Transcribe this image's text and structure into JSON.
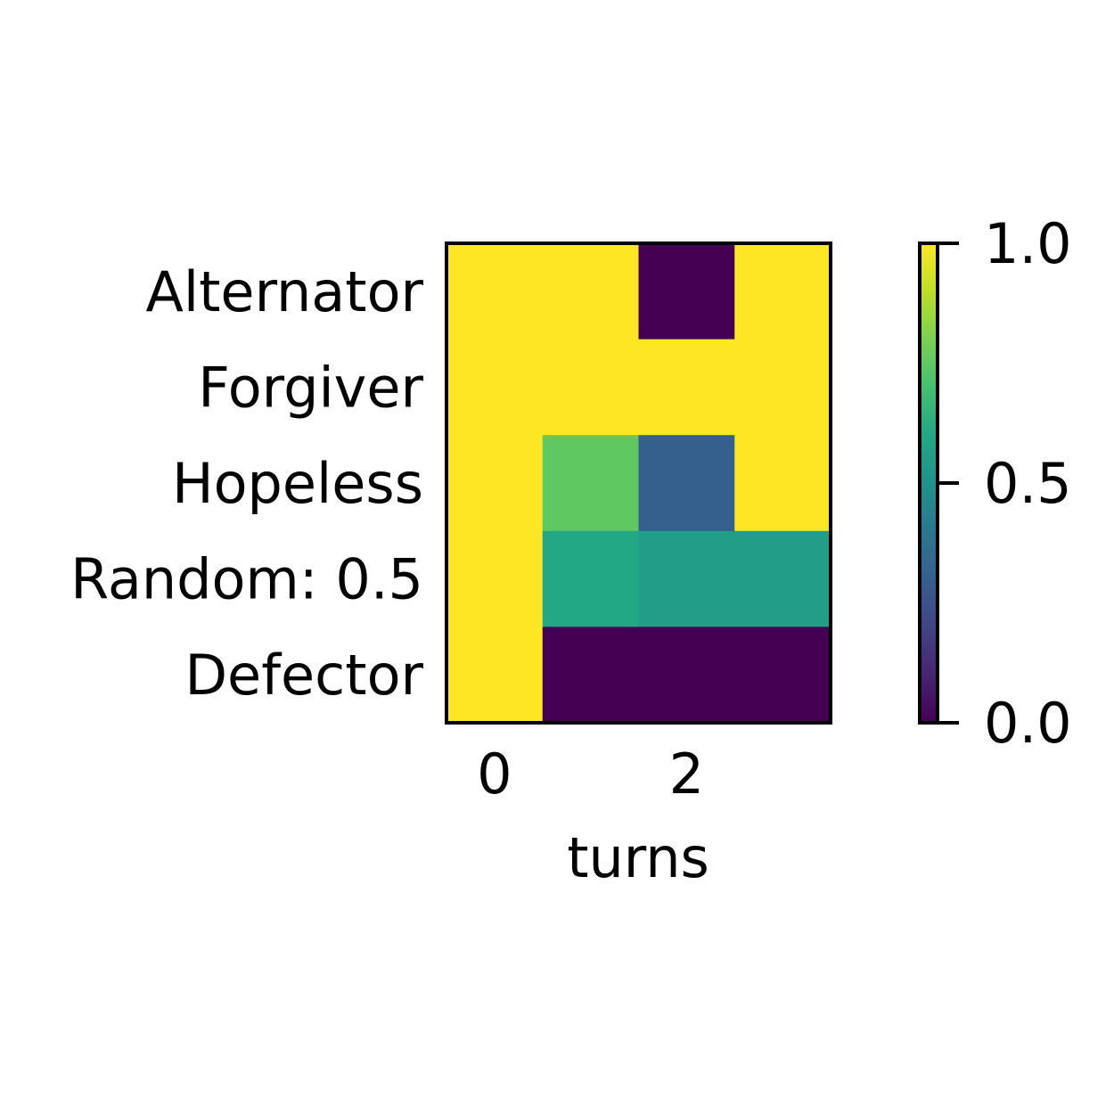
{
  "chart_data": {
    "type": "heatmap",
    "title": "",
    "xlabel": "turns",
    "ylabel": "",
    "rows": [
      "Alternator",
      "Forgiver",
      "Hopeless",
      "Random: 0.5",
      "Defector"
    ],
    "columns": [
      0,
      1,
      2,
      3
    ],
    "x_tick_labels": [
      "0",
      "2"
    ],
    "values": [
      [
        1.0,
        1.0,
        0.0,
        1.0
      ],
      [
        1.0,
        1.0,
        1.0,
        1.0
      ],
      [
        1.0,
        0.75,
        0.3,
        1.0
      ],
      [
        1.0,
        0.6,
        0.55,
        0.55
      ],
      [
        1.0,
        0.0,
        0.0,
        0.0
      ]
    ],
    "colormap": "viridis",
    "color_range": [
      0.0,
      1.0
    ],
    "colorbar": {
      "ticks": [
        0.0,
        0.5,
        1.0
      ],
      "tick_labels": [
        "0.0",
        "0.5",
        "1.0"
      ]
    },
    "grid": false,
    "legend": "colorbar-right"
  }
}
